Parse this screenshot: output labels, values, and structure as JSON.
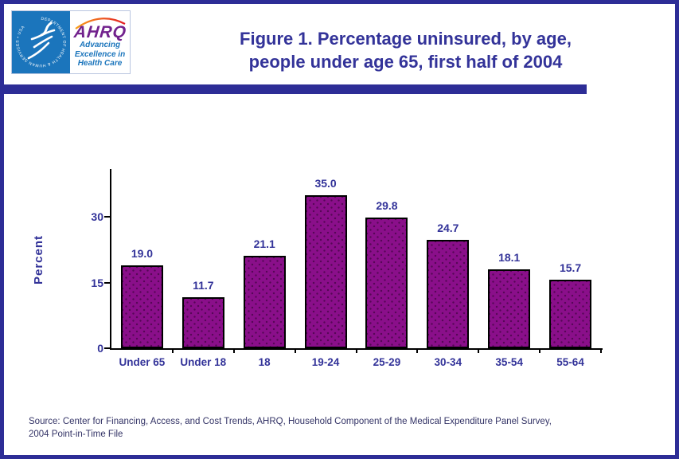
{
  "header": {
    "logo": {
      "hhs_seal_text": "DEPARTMENT OF HEALTH & HUMAN SERVICES • USA",
      "ahrq_acronym": "AHRQ",
      "ahrq_tagline": [
        "Advancing",
        "Excellence in",
        "Health Care"
      ]
    },
    "title_line1": "Figure 1. Percentage uninsured, by age,",
    "title_line2": "people under age 65, first half of 2004"
  },
  "chart_data": {
    "type": "bar",
    "title": "Figure 1. Percentage uninsured, by age, people under age 65, first half of 2004",
    "categories": [
      "Under 65",
      "Under 18",
      "18",
      "19-24",
      "25-29",
      "30-34",
      "35-54",
      "55-64"
    ],
    "values": [
      19.0,
      11.7,
      21.1,
      35.0,
      29.8,
      24.7,
      18.1,
      15.7
    ],
    "value_labels": [
      "19.0",
      "11.7",
      "21.1",
      "35.0",
      "29.8",
      "24.7",
      "18.1",
      "15.7"
    ],
    "xlabel": "",
    "ylabel": "Percent",
    "yticks": [
      0,
      15,
      30
    ],
    "ylim": [
      0,
      41
    ],
    "grid": false,
    "legend": false,
    "bar_fill": "#8A0F8A",
    "bar_border": "#000000",
    "label_color": "#333399"
  },
  "footer": {
    "source_line1": "Source: Center for Financing, Access, and Cost Trends, AHRQ, Household Component of the Medical Expenditure Panel Survey,",
    "source_line2": "2004 Point-in-Time File"
  },
  "colors": {
    "accent_navy": "#333399",
    "frame_navy": "#2D2D96",
    "hhs_blue": "#1B75BC",
    "ahrq_purple": "#72228D",
    "source_text": "#333366",
    "bar_purple": "#8A0F8A"
  }
}
